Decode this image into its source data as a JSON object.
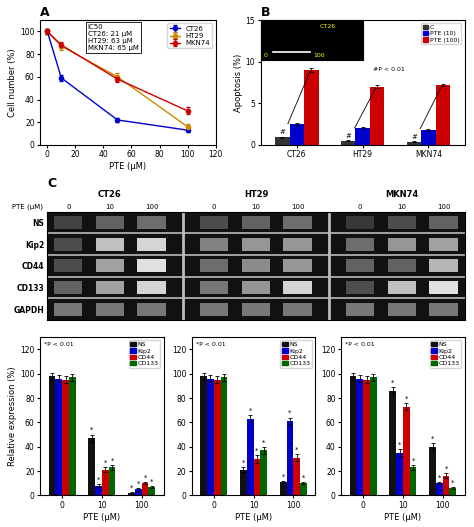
{
  "chart_data": [
    {
      "type": "line",
      "title": "A",
      "x": [
        0,
        10,
        50,
        100
      ],
      "series": [
        {
          "name": "CT26",
          "color": "#0000CC",
          "marker": "o",
          "values": [
            100,
            59,
            22,
            13
          ],
          "errors": [
            2,
            3,
            2,
            2
          ]
        },
        {
          "name": "HT29",
          "color": "#CC8800",
          "marker": "o",
          "values": [
            100,
            87,
            60,
            16
          ],
          "errors": [
            2,
            3,
            3,
            2
          ]
        },
        {
          "name": "MKN74",
          "color": "#CC0000",
          "marker": "o",
          "values": [
            100,
            88,
            58,
            30
          ],
          "errors": [
            2,
            3,
            3,
            3
          ]
        }
      ],
      "xlabel": "PTE (μM)",
      "ylabel": "Cell number (%)",
      "xlim": [
        -5,
        120
      ],
      "ylim": [
        0,
        110
      ],
      "xticks": [
        0,
        20,
        40,
        60,
        80,
        100,
        120
      ],
      "yticks": [
        0,
        20,
        40,
        60,
        80,
        100
      ],
      "legend": "upper right",
      "annotations": [
        "IC50\nCT26: 21 μM\nHT29: 63 μM\nMKN74: 65 μM"
      ]
    },
    {
      "type": "bar",
      "title": "B",
      "categories": [
        "CT26",
        "HT29",
        "MKN74"
      ],
      "series": [
        {
          "name": "C",
          "color": "#333333",
          "values": [
            0.9,
            0.5,
            0.4
          ],
          "errors": [
            0.1,
            0.05,
            0.05
          ],
          "significance": [
            "#",
            "#",
            "#"
          ]
        },
        {
          "name": "PTE (10)",
          "color": "#0000CC",
          "values": [
            2.5,
            2.0,
            1.8
          ],
          "errors": [
            0.15,
            0.12,
            0.1
          ]
        },
        {
          "name": "PTE (100)",
          "color": "#CC0000",
          "values": [
            9.0,
            7.0,
            7.2
          ],
          "errors": [
            0.2,
            0.15,
            0.15
          ]
        }
      ],
      "ylabel": "Apoptosis (%)",
      "ylim": [
        0,
        15
      ],
      "yticks": [
        0,
        5,
        10,
        15
      ],
      "legend": "upper right",
      "annotations": [
        "#P < 0.01"
      ],
      "inset": {
        "annotations": [
          "CT26",
          "0",
          "100"
        ]
      }
    },
    {
      "type": "heatmap",
      "title": "C",
      "rows": [
        "NS",
        "Kip2",
        "CD44",
        "CD133",
        "GAPDH"
      ],
      "groups": [
        "CT26",
        "HT29",
        "MKN74"
      ],
      "categories": [
        "0",
        "10",
        "100"
      ],
      "annotations": [
        "PTE (μM)"
      ],
      "cells": [
        [
          [
            0.9,
            0.75,
            0.7
          ],
          [
            0.85,
            0.75,
            0.7
          ],
          [
            0.95,
            0.85,
            0.75
          ]
        ],
        [
          [
            0.85,
            0.3,
            0.2
          ],
          [
            0.6,
            0.5,
            0.5
          ],
          [
            0.7,
            0.5,
            0.45
          ]
        ],
        [
          [
            0.85,
            0.45,
            0.15
          ],
          [
            0.7,
            0.55,
            0.5
          ],
          [
            0.75,
            0.75,
            0.35
          ]
        ],
        [
          [
            0.75,
            0.45,
            0.2
          ],
          [
            0.65,
            0.5,
            0.2
          ],
          [
            0.85,
            0.3,
            0.15
          ]
        ],
        [
          [
            0.65,
            0.65,
            0.65
          ],
          [
            0.65,
            0.65,
            0.65
          ],
          [
            0.65,
            0.65,
            0.65
          ]
        ]
      ]
    },
    {
      "type": "bar",
      "categories": [
        "0",
        "10",
        "100"
      ],
      "series": [
        {
          "name": "NS",
          "color": "#111111",
          "values": [
            98,
            47,
            2
          ],
          "errors": [
            3,
            3,
            1
          ],
          "significance": [
            null,
            "*",
            "*"
          ]
        },
        {
          "name": "Kip2",
          "color": "#0000CC",
          "values": [
            96,
            8,
            5
          ],
          "errors": [
            3,
            1,
            1
          ],
          "significance": [
            null,
            "*",
            "*"
          ]
        },
        {
          "name": "CD44",
          "color": "#CC0000",
          "values": [
            95,
            21,
            10
          ],
          "errors": [
            3,
            2,
            1
          ],
          "significance": [
            null,
            "*",
            "*"
          ]
        },
        {
          "name": "CD133",
          "color": "#006600",
          "values": [
            97,
            23,
            7
          ],
          "errors": [
            3,
            2,
            1
          ],
          "significance": [
            null,
            "*",
            "*"
          ]
        }
      ],
      "xlabel": "PTE (μM)",
      "ylabel": "Relative expression (%)",
      "ylim": [
        0,
        130
      ],
      "yticks": [
        0,
        20,
        40,
        60,
        80,
        100,
        120
      ],
      "legend": "upper right",
      "annotations": [
        "*P < 0.01"
      ]
    },
    {
      "type": "bar",
      "categories": [
        "0",
        "10",
        "100"
      ],
      "series": [
        {
          "name": "NS",
          "color": "#111111",
          "values": [
            98,
            21,
            11
          ],
          "errors": [
            3,
            2,
            1
          ],
          "significance": [
            null,
            "*",
            "*"
          ]
        },
        {
          "name": "Kip2",
          "color": "#0000CC",
          "values": [
            96,
            63,
            61
          ],
          "errors": [
            3,
            3,
            3
          ],
          "significance": [
            null,
            "*",
            "*"
          ]
        },
        {
          "name": "CD44",
          "color": "#CC0000",
          "values": [
            95,
            30,
            31
          ],
          "errors": [
            3,
            3,
            3
          ],
          "significance": [
            null,
            "*",
            "*"
          ]
        },
        {
          "name": "CD133",
          "color": "#006600",
          "values": [
            97,
            37,
            10
          ],
          "errors": [
            3,
            3,
            1
          ],
          "significance": [
            null,
            "*",
            "*"
          ]
        }
      ],
      "xlabel": "PTE (μM)",
      "ylim": [
        0,
        130
      ],
      "yticks": [
        0,
        20,
        40,
        60,
        80,
        100,
        120
      ],
      "legend": "upper right",
      "annotations": [
        "*P < 0.01"
      ]
    },
    {
      "type": "bar",
      "categories": [
        "0",
        "10",
        "100"
      ],
      "series": [
        {
          "name": "NS",
          "color": "#111111",
          "values": [
            98,
            86,
            40
          ],
          "errors": [
            3,
            3,
            3
          ],
          "significance": [
            null,
            "*",
            "*"
          ]
        },
        {
          "name": "Kip2",
          "color": "#0000CC",
          "values": [
            96,
            35,
            10
          ],
          "errors": [
            3,
            3,
            1
          ],
          "significance": [
            null,
            "*",
            "*"
          ]
        },
        {
          "name": "CD44",
          "color": "#CC0000",
          "values": [
            95,
            73,
            16
          ],
          "errors": [
            3,
            3,
            2
          ],
          "significance": [
            null,
            "*",
            "*"
          ]
        },
        {
          "name": "CD133",
          "color": "#006600",
          "values": [
            97,
            23,
            6
          ],
          "errors": [
            3,
            2,
            1
          ],
          "significance": [
            null,
            "*",
            "*"
          ]
        }
      ],
      "xlabel": "PTE (μM)",
      "ylim": [
        0,
        130
      ],
      "yticks": [
        0,
        20,
        40,
        60,
        80,
        100,
        120
      ],
      "legend": "upper right",
      "annotations": [
        "*P < 0.01"
      ]
    }
  ]
}
